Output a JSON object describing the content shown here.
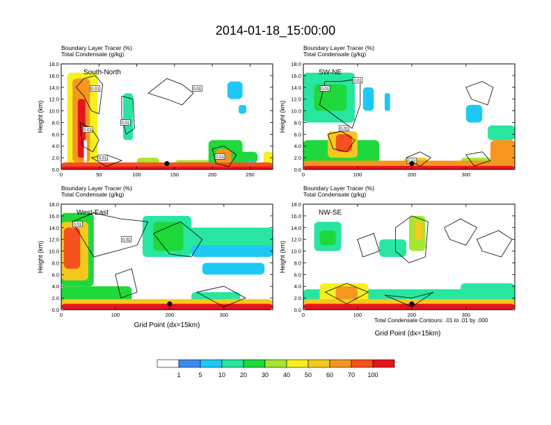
{
  "title": "2014-01-18_15:00:00",
  "field_label": "Boundary Layer Tracer",
  "field_unit": "(%)",
  "contour_label": "Total Condensate",
  "contour_unit": "(g/kg)",
  "contour_info": "Total Condensate Contours: .01 to .01 by .000",
  "xlabel": "Grid Point (dx=15km)",
  "ylabel": "Height (km)",
  "colors": {
    "background": "#ffffff",
    "contour": "#000000",
    "marker": "#000000"
  },
  "colorbar": {
    "levels": [
      "1",
      "5",
      "10",
      "20",
      "30",
      "40",
      "50",
      "60",
      "70",
      "100"
    ],
    "colors": [
      "#ffffff",
      "#3a8cf2",
      "#1ec8f5",
      "#28e6a0",
      "#1ed83c",
      "#a6e632",
      "#f5f01e",
      "#f5c81e",
      "#f5961e",
      "#f5501e",
      "#e6141e"
    ]
  },
  "chart_data": [
    {
      "type": "heatmap",
      "name": "South-North",
      "ylim": [
        0,
        18
      ],
      "yticks": [
        "0.0",
        "2.0",
        "4.0",
        "6.0",
        "8.0",
        "10.0",
        "12.0",
        "14.0",
        "16.0",
        "18.0"
      ],
      "xlim": [
        0,
        280
      ],
      "xticks": [
        "0",
        "50",
        "100",
        "150",
        "200",
        "250"
      ],
      "xtick_values": [
        0,
        50,
        100,
        150,
        200,
        250
      ],
      "marker": [
        140,
        1.0
      ],
      "contour_labels": [
        [
          45,
          13.8,
          "0.01"
        ],
        [
          35,
          6.8,
          "0.01"
        ],
        [
          85,
          8.0,
          "0.01"
        ],
        [
          180,
          13.8,
          "0.01"
        ],
        [
          55,
          2.0,
          "0.01"
        ],
        [
          210,
          2.2,
          "0.01"
        ]
      ],
      "features": [
        {
          "x": [
            8,
            48
          ],
          "base": 0.5,
          "top": 16.5,
          "cls": 6
        },
        {
          "x": [
            15,
            38
          ],
          "base": 1.2,
          "top": 15.5,
          "cls": 8
        },
        {
          "x": [
            22,
            32
          ],
          "base": 2,
          "top": 12,
          "cls": 10
        },
        {
          "x": [
            30,
            34
          ],
          "base": 0,
          "top": 5,
          "cls": 0
        },
        {
          "x": [
            82,
            95
          ],
          "base": 5,
          "top": 13,
          "cls": 3
        },
        {
          "x": [
            100,
            130
          ],
          "base": 0.5,
          "top": 2,
          "cls": 5
        },
        {
          "x": [
            150,
            200
          ],
          "base": 0.4,
          "top": 1.6,
          "cls": 5
        },
        {
          "x": [
            195,
            240
          ],
          "base": 0.4,
          "top": 5,
          "cls": 4
        },
        {
          "x": [
            205,
            225
          ],
          "base": 1,
          "top": 3.5,
          "cls": 8
        },
        {
          "x": [
            235,
            260
          ],
          "base": 0.3,
          "top": 3,
          "cls": 4
        },
        {
          "x": [
            244,
            258
          ],
          "base": 0.5,
          "top": 1.5,
          "cls": 2
        },
        {
          "x": [
            258,
            265
          ],
          "base": 0,
          "top": 1.5,
          "cls": 0
        },
        {
          "x": [
            268,
            280
          ],
          "base": 0.5,
          "top": 3,
          "cls": 6
        },
        {
          "x": [
            0,
            280
          ],
          "base": 0.2,
          "top": 1.2,
          "cls": 9
        },
        {
          "x": [
            0,
            280
          ],
          "base": 0,
          "top": 0.5,
          "cls": 10
        },
        {
          "x": [
            220,
            240
          ],
          "base": 12,
          "top": 15,
          "cls": 2
        },
        {
          "x": [
            235,
            245
          ],
          "base": 9.5,
          "top": 11,
          "cls": 2
        }
      ],
      "contours": [
        [
          [
            20,
            14
          ],
          [
            30,
            12.5
          ],
          [
            40,
            10
          ],
          [
            50,
            9.5
          ],
          [
            55,
            14.5
          ],
          [
            45,
            16
          ],
          [
            30,
            15.5
          ],
          [
            20,
            14
          ]
        ],
        [
          [
            25,
            8
          ],
          [
            40,
            7
          ],
          [
            50,
            5
          ],
          [
            42,
            3
          ],
          [
            28,
            4
          ],
          [
            25,
            8
          ]
        ],
        [
          [
            80,
            12.5
          ],
          [
            95,
            12
          ],
          [
            97,
            7
          ],
          [
            86,
            6
          ],
          [
            80,
            9
          ],
          [
            80,
            12.5
          ]
        ],
        [
          [
            115,
            13
          ],
          [
            140,
            15.5
          ],
          [
            160,
            14.5
          ],
          [
            175,
            13
          ],
          [
            160,
            11
          ],
          [
            140,
            12
          ],
          [
            115,
            13
          ]
        ],
        [
          [
            200,
            3.5
          ],
          [
            215,
            4
          ],
          [
            232,
            2.5
          ],
          [
            222,
            0.5
          ],
          [
            205,
            1
          ],
          [
            200,
            3.5
          ]
        ],
        [
          [
            40,
            2
          ],
          [
            60,
            2.5
          ],
          [
            80,
            1.5
          ],
          [
            60,
            0.5
          ],
          [
            40,
            2
          ]
        ]
      ]
    },
    {
      "type": "heatmap",
      "name": "SW-NE",
      "ylim": [
        0,
        18
      ],
      "yticks": [
        "0.0",
        "2.0",
        "4.0",
        "6.0",
        "8.0",
        "10.0",
        "12.0",
        "14.0",
        "16.0",
        "18.0"
      ],
      "xlim": [
        0,
        390
      ],
      "xticks": [
        "0",
        "100",
        "200",
        "300"
      ],
      "xtick_values": [
        0,
        100,
        200,
        300
      ],
      "marker": [
        200,
        1.0
      ],
      "contour_labels": [
        [
          100,
          15.2,
          "0.01"
        ],
        [
          40,
          13.8,
          "0.01"
        ],
        [
          75,
          7.0,
          "0.01"
        ],
        [
          200,
          1.5,
          "0.01"
        ]
      ],
      "features": [
        {
          "x": [
            0,
            95
          ],
          "base": 8,
          "top": 16.5,
          "cls": 3
        },
        {
          "x": [
            20,
            80
          ],
          "base": 10,
          "top": 14.5,
          "cls": 4
        },
        {
          "x": [
            110,
            130
          ],
          "base": 10,
          "top": 14,
          "cls": 2
        },
        {
          "x": [
            150,
            160
          ],
          "base": 10,
          "top": 13,
          "cls": 2
        },
        {
          "x": [
            300,
            330
          ],
          "base": 8,
          "top": 11,
          "cls": 2
        },
        {
          "x": [
            340,
            390
          ],
          "base": 5,
          "top": 7.5,
          "cls": 3
        },
        {
          "x": [
            0,
            140
          ],
          "base": 1,
          "top": 5,
          "cls": 4
        },
        {
          "x": [
            45,
            100
          ],
          "base": 2,
          "top": 6.5,
          "cls": 7
        },
        {
          "x": [
            60,
            90
          ],
          "base": 3,
          "top": 6,
          "cls": 9
        },
        {
          "x": [
            185,
            230
          ],
          "base": 0.3,
          "top": 2,
          "cls": 7
        },
        {
          "x": [
            290,
            345
          ],
          "base": 0.3,
          "top": 2,
          "cls": 5
        },
        {
          "x": [
            345,
            390
          ],
          "base": 0.3,
          "top": 5,
          "cls": 8
        },
        {
          "x": [
            0,
            390
          ],
          "base": 0.2,
          "top": 1.5,
          "cls": 8
        },
        {
          "x": [
            0,
            390
          ],
          "base": 0,
          "top": 0.6,
          "cls": 10
        }
      ],
      "contours": [
        [
          [
            30,
            11
          ],
          [
            60,
            9
          ],
          [
            90,
            7
          ],
          [
            105,
            11
          ],
          [
            105,
            15.5
          ],
          [
            70,
            15
          ],
          [
            40,
            15
          ],
          [
            30,
            11
          ]
        ],
        [
          [
            45,
            6
          ],
          [
            70,
            6.5
          ],
          [
            95,
            5
          ],
          [
            80,
            3
          ],
          [
            55,
            3.5
          ],
          [
            45,
            6
          ]
        ],
        [
          [
            190,
            2
          ],
          [
            215,
            3
          ],
          [
            235,
            2
          ],
          [
            215,
            0.5
          ],
          [
            190,
            2
          ]
        ],
        [
          [
            300,
            14
          ],
          [
            330,
            15
          ],
          [
            350,
            14
          ],
          [
            340,
            11
          ],
          [
            310,
            12
          ],
          [
            300,
            14
          ]
        ],
        [
          [
            300,
            2.5
          ],
          [
            330,
            3
          ],
          [
            345,
            1.5
          ],
          [
            315,
            0.6
          ],
          [
            300,
            2.5
          ]
        ]
      ]
    },
    {
      "type": "heatmap",
      "name": "West-East",
      "ylim": [
        0,
        18
      ],
      "yticks": [
        "0.0",
        "2.0",
        "4.0",
        "6.0",
        "8.0",
        "10.0",
        "12.0",
        "14.0",
        "16.0",
        "18.0"
      ],
      "xlim": [
        0,
        390
      ],
      "xticks": [
        "0",
        "100",
        "200",
        "300"
      ],
      "xtick_values": [
        0,
        100,
        200,
        300
      ],
      "marker": [
        200,
        1.0
      ],
      "contour_labels": [
        [
          30,
          14.6,
          "0.01"
        ],
        [
          120,
          12.0,
          "0.01"
        ]
      ],
      "features": [
        {
          "x": [
            0,
            60
          ],
          "base": 4,
          "top": 16.5,
          "cls": 4
        },
        {
          "x": [
            0,
            50
          ],
          "base": 5,
          "top": 15,
          "cls": 7
        },
        {
          "x": [
            5,
            35
          ],
          "base": 7,
          "top": 14,
          "cls": 9
        },
        {
          "x": [
            150,
            240
          ],
          "base": 9,
          "top": 16,
          "cls": 3
        },
        {
          "x": [
            170,
            225
          ],
          "base": 10,
          "top": 15,
          "cls": 4
        },
        {
          "x": [
            235,
            390
          ],
          "base": 10,
          "top": 14,
          "cls": 3
        },
        {
          "x": [
            240,
            390
          ],
          "base": 9,
          "top": 11,
          "cls": 2
        },
        {
          "x": [
            260,
            375
          ],
          "base": 6,
          "top": 8,
          "cls": 2
        },
        {
          "x": [
            0,
            130
          ],
          "base": 0.5,
          "top": 4,
          "cls": 4
        },
        {
          "x": [
            240,
            330
          ],
          "base": 0.5,
          "top": 3,
          "cls": 3
        },
        {
          "x": [
            0,
            390
          ],
          "base": 0.2,
          "top": 1.8,
          "cls": 7
        },
        {
          "x": [
            0,
            390
          ],
          "base": 0,
          "top": 1,
          "cls": 10
        }
      ],
      "contours": [
        [
          [
            20,
            15
          ],
          [
            60,
            16.5
          ],
          [
            110,
            15.5
          ],
          [
            160,
            15
          ],
          [
            140,
            11
          ],
          [
            100,
            10
          ],
          [
            60,
            9
          ],
          [
            40,
            12
          ],
          [
            20,
            15
          ]
        ],
        [
          [
            170,
            13
          ],
          [
            220,
            15
          ],
          [
            260,
            12
          ],
          [
            240,
            9
          ],
          [
            200,
            9.5
          ],
          [
            170,
            13
          ]
        ],
        [
          [
            100,
            6
          ],
          [
            130,
            7
          ],
          [
            140,
            3
          ],
          [
            110,
            2
          ],
          [
            100,
            6
          ]
        ],
        [
          [
            250,
            3
          ],
          [
            300,
            4
          ],
          [
            340,
            2
          ],
          [
            300,
            0.5
          ],
          [
            250,
            3
          ]
        ]
      ]
    },
    {
      "type": "heatmap",
      "name": "NW-SE",
      "ylim": [
        0,
        18
      ],
      "yticks": [
        "0.0",
        "2.0",
        "4.0",
        "6.0",
        "8.0",
        "10.0",
        "12.0",
        "14.0",
        "16.0",
        "18.0"
      ],
      "xlim": [
        0,
        390
      ],
      "xticks": [
        "0",
        "100",
        "200",
        "300"
      ],
      "xtick_values": [
        0,
        100,
        200,
        300
      ],
      "marker": [
        200,
        1.0
      ],
      "contour_labels": [],
      "features": [
        {
          "x": [
            20,
            70
          ],
          "base": 10,
          "top": 15,
          "cls": 3
        },
        {
          "x": [
            30,
            60
          ],
          "base": 11,
          "top": 13.5,
          "cls": 4
        },
        {
          "x": [
            140,
            190
          ],
          "base": 9,
          "top": 12,
          "cls": 3
        },
        {
          "x": [
            195,
            225
          ],
          "base": 10,
          "top": 16,
          "cls": 5
        },
        {
          "x": [
            205,
            220
          ],
          "base": 12,
          "top": 15,
          "cls": 7
        },
        {
          "x": [
            0,
            390
          ],
          "base": 0.3,
          "top": 3.5,
          "cls": 3
        },
        {
          "x": [
            30,
            120
          ],
          "base": 1,
          "top": 4.5,
          "cls": 6
        },
        {
          "x": [
            60,
            100
          ],
          "base": 1.5,
          "top": 4,
          "cls": 8
        },
        {
          "x": [
            290,
            390
          ],
          "base": 1,
          "top": 4.5,
          "cls": 3
        },
        {
          "x": [
            0,
            390
          ],
          "base": 0.2,
          "top": 1.8,
          "cls": 7
        },
        {
          "x": [
            0,
            390
          ],
          "base": 0,
          "top": 1,
          "cls": 10
        }
      ],
      "contours": [
        [
          [
            170,
            14
          ],
          [
            200,
            16
          ],
          [
            230,
            15
          ],
          [
            225,
            9
          ],
          [
            195,
            8
          ],
          [
            170,
            10
          ],
          [
            170,
            14
          ]
        ],
        [
          [
            260,
            14
          ],
          [
            290,
            15.5
          ],
          [
            320,
            14
          ],
          [
            300,
            11
          ],
          [
            270,
            12
          ],
          [
            260,
            14
          ]
        ],
        [
          [
            100,
            12
          ],
          [
            130,
            13
          ],
          [
            140,
            10
          ],
          [
            110,
            9
          ],
          [
            100,
            12
          ]
        ],
        [
          [
            320,
            12
          ],
          [
            360,
            13.5
          ],
          [
            385,
            12
          ],
          [
            365,
            9
          ],
          [
            330,
            10
          ],
          [
            320,
            12
          ]
        ],
        [
          [
            40,
            3
          ],
          [
            80,
            4.5
          ],
          [
            120,
            3
          ],
          [
            80,
            1
          ],
          [
            40,
            3
          ]
        ],
        [
          [
            150,
            2.5
          ],
          [
            200,
            2
          ],
          [
            240,
            3
          ],
          [
            200,
            0.5
          ],
          [
            150,
            2.5
          ]
        ]
      ]
    }
  ]
}
